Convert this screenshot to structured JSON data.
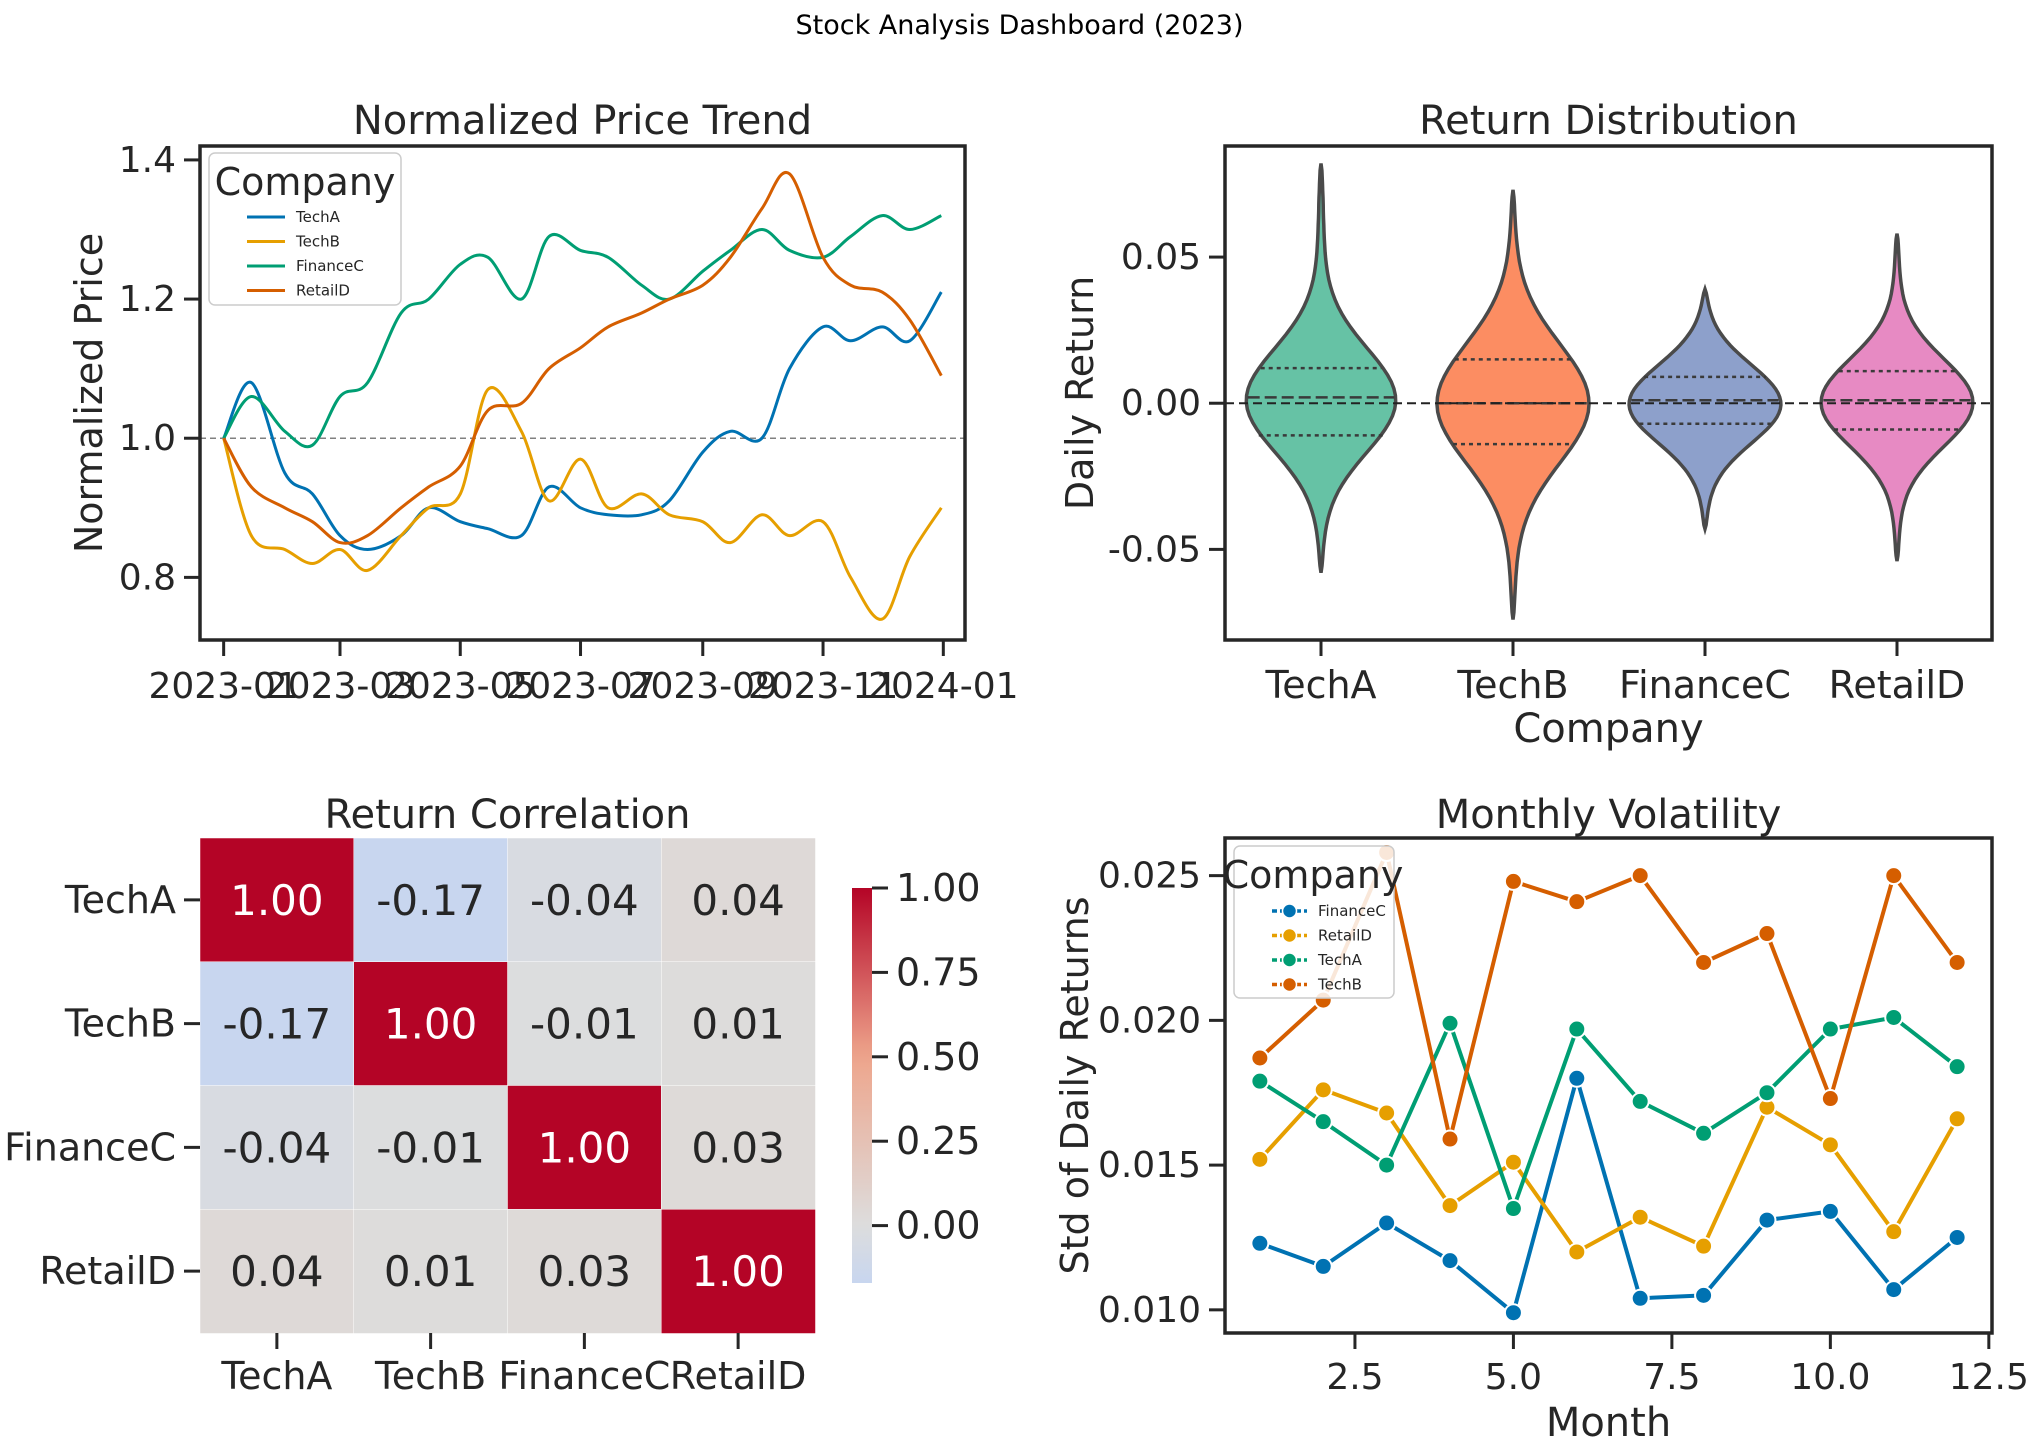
{
  "suptitle": "Stock Analysis Dashboard (2023)",
  "colors": {
    "TechA": "#0072b2",
    "TechB": "#e69f00",
    "FinanceC": "#009e73",
    "RetailD": "#d55e00",
    "violin_TechA": "#66c2a5",
    "violin_TechB": "#fc8d62",
    "violin_FinanceC": "#8da0cb",
    "violin_RetailD": "#e78ac3"
  },
  "chart_data": [
    {
      "type": "line",
      "title": "Normalized Price Trend",
      "xlabel": "",
      "ylabel": "Normalized Price",
      "x_ticks": [
        "2023-01",
        "2023-03",
        "2023-05",
        "2023-07",
        "2023-09",
        "2023-11",
        "2024-01"
      ],
      "y_ticks": [
        "0.8",
        "1.0",
        "1.2",
        "1.4"
      ],
      "xlim": [
        "2022-12-20",
        "2024-01-12"
      ],
      "ylim": [
        0.71,
        1.42
      ],
      "reference_line": 1.0,
      "legend": {
        "title": "Company",
        "placement": "upper-left",
        "entries": [
          "TechA",
          "TechB",
          "FinanceC",
          "RetailD"
        ]
      },
      "x": [
        "2023-01-01",
        "2023-01-15",
        "2023-02-01",
        "2023-02-15",
        "2023-03-01",
        "2023-03-15",
        "2023-04-01",
        "2023-04-15",
        "2023-05-01",
        "2023-05-15",
        "2023-06-01",
        "2023-06-15",
        "2023-07-01",
        "2023-07-15",
        "2023-08-01",
        "2023-08-15",
        "2023-09-01",
        "2023-09-15",
        "2023-10-01",
        "2023-10-15",
        "2023-11-01",
        "2023-11-15",
        "2023-12-01",
        "2023-12-15",
        "2023-12-31"
      ],
      "series": [
        {
          "name": "TechA",
          "values": [
            1.0,
            1.08,
            0.95,
            0.92,
            0.86,
            0.84,
            0.86,
            0.9,
            0.88,
            0.87,
            0.86,
            0.93,
            0.9,
            0.89,
            0.89,
            0.91,
            0.98,
            1.01,
            1.0,
            1.1,
            1.16,
            1.14,
            1.16,
            1.14,
            1.21
          ]
        },
        {
          "name": "TechB",
          "values": [
            1.0,
            0.86,
            0.84,
            0.82,
            0.84,
            0.81,
            0.86,
            0.9,
            0.92,
            1.07,
            1.01,
            0.91,
            0.97,
            0.9,
            0.92,
            0.89,
            0.88,
            0.85,
            0.89,
            0.86,
            0.88,
            0.8,
            0.74,
            0.83,
            0.9
          ]
        },
        {
          "name": "FinanceC",
          "values": [
            1.0,
            1.06,
            1.01,
            0.99,
            1.06,
            1.08,
            1.18,
            1.2,
            1.25,
            1.26,
            1.2,
            1.29,
            1.27,
            1.26,
            1.22,
            1.2,
            1.24,
            1.27,
            1.3,
            1.27,
            1.26,
            1.29,
            1.32,
            1.3,
            1.32
          ]
        },
        {
          "name": "RetailD",
          "values": [
            1.0,
            0.93,
            0.9,
            0.88,
            0.85,
            0.86,
            0.9,
            0.93,
            0.96,
            1.04,
            1.05,
            1.1,
            1.13,
            1.16,
            1.18,
            1.2,
            1.22,
            1.26,
            1.33,
            1.38,
            1.26,
            1.22,
            1.21,
            1.17,
            1.09
          ]
        }
      ]
    },
    {
      "type": "violin",
      "title": "Return Distribution",
      "xlabel": "Company",
      "ylabel": "Daily Return",
      "categories": [
        "TechA",
        "TechB",
        "FinanceC",
        "RetailD"
      ],
      "y_ticks": [
        "-0.05",
        "0.00",
        "0.05"
      ],
      "ylim": [
        -0.081,
        0.088
      ],
      "reference_line": 0.0,
      "range": [
        [
          -0.058,
          0.082
        ],
        [
          -0.074,
          0.073
        ],
        [
          -0.043,
          0.039
        ],
        [
          -0.054,
          0.058
        ]
      ],
      "quartiles": [
        [
          -0.011,
          0.002,
          0.012
        ],
        [
          -0.014,
          0.0,
          0.015
        ],
        [
          -0.007,
          0.001,
          0.009
        ],
        [
          -0.009,
          0.001,
          0.011
        ]
      ],
      "spread": [
        0.026,
        0.03,
        0.02,
        0.022
      ]
    },
    {
      "type": "heatmap",
      "title": "Return Correlation",
      "row_labels": [
        "TechA",
        "TechB",
        "FinanceC",
        "RetailD"
      ],
      "col_labels": [
        "TechA",
        "TechB",
        "FinanceC",
        "RetailD"
      ],
      "values": [
        [
          1.0,
          -0.17,
          -0.04,
          0.04
        ],
        [
          -0.17,
          1.0,
          -0.01,
          0.01
        ],
        [
          -0.04,
          -0.01,
          1.0,
          0.03
        ],
        [
          0.04,
          0.01,
          0.03,
          1.0
        ]
      ],
      "annotations": [
        [
          "1.00",
          "-0.17",
          "-0.04",
          "0.04"
        ],
        [
          "-0.17",
          "1.00",
          "-0.01",
          "0.01"
        ],
        [
          "-0.04",
          "-0.01",
          "1.00",
          "0.03"
        ],
        [
          "0.04",
          "0.01",
          "0.03",
          "1.00"
        ]
      ],
      "colorbar": {
        "ticks": [
          "0.00",
          "0.25",
          "0.50",
          "0.75",
          "1.00"
        ],
        "range": [
          -0.17,
          1.0
        ],
        "colormap": "coolwarm",
        "center": 0
      }
    },
    {
      "type": "line",
      "title": "Monthly Volatility",
      "xlabel": "Month",
      "ylabel": "Std of Daily Returns",
      "x_ticks": [
        "2.5",
        "5.0",
        "7.5",
        "10.0",
        "12.5"
      ],
      "y_ticks": [
        "0.010",
        "0.015",
        "0.020",
        "0.025"
      ],
      "xlim": [
        0.45,
        12.55
      ],
      "ylim": [
        0.0092,
        0.0263
      ],
      "markers": true,
      "legend": {
        "title": "Company",
        "placement": "upper-left",
        "entries": [
          "FinanceC",
          "RetailD",
          "TechA",
          "TechB"
        ]
      },
      "x": [
        1,
        2,
        3,
        4,
        5,
        6,
        7,
        8,
        9,
        10,
        11,
        12
      ],
      "series": [
        {
          "name": "FinanceC",
          "color_key": "TechA",
          "values": [
            0.0123,
            0.0115,
            0.013,
            0.0117,
            0.0099,
            0.018,
            0.0104,
            0.0105,
            0.0131,
            0.0134,
            0.0107,
            0.0125
          ]
        },
        {
          "name": "RetailD",
          "color_key": "TechB",
          "values": [
            0.0152,
            0.0176,
            0.0168,
            0.0136,
            0.0151,
            0.012,
            0.0132,
            0.0122,
            0.017,
            0.0157,
            0.0127,
            0.0166
          ]
        },
        {
          "name": "TechA",
          "color_key": "FinanceC",
          "values": [
            0.0179,
            0.0165,
            0.015,
            0.0199,
            0.0135,
            0.0197,
            0.0172,
            0.0161,
            0.0175,
            0.0197,
            0.0201,
            0.0184
          ]
        },
        {
          "name": "TechB",
          "color_key": "RetailD",
          "values": [
            0.0187,
            0.0207,
            0.0258,
            0.0159,
            0.0248,
            0.0241,
            0.025,
            0.022,
            0.023,
            0.0173,
            0.025,
            0.022
          ]
        }
      ]
    }
  ]
}
